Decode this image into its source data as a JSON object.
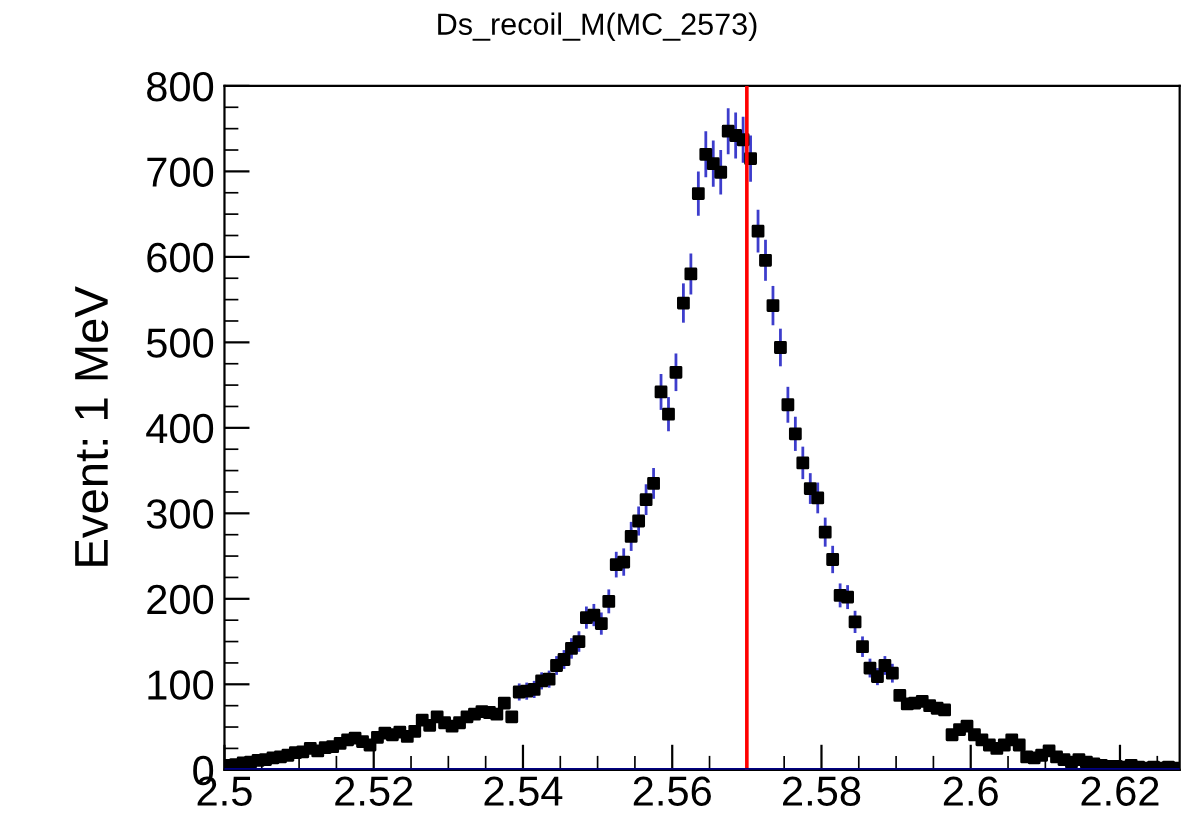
{
  "chart_data": {
    "type": "scatter",
    "title": "Ds_recoil_M(MC_2573)",
    "ylabel": "Event: 1 MeV",
    "xlim": [
      2.5,
      2.628
    ],
    "xticks": [
      2.5,
      2.52,
      2.54,
      2.56,
      2.58,
      2.6,
      2.62
    ],
    "ylim": [
      0,
      800
    ],
    "yticks": [
      0,
      100,
      200,
      300,
      400,
      500,
      600,
      700,
      800
    ],
    "grid": false,
    "legend": false,
    "marker": "square",
    "ref_lines": [
      {
        "axis": "x",
        "value": 2.57,
        "color": "#ff0000"
      },
      {
        "axis": "y",
        "value": 0,
        "color": "#000080"
      }
    ],
    "series": [
      {
        "color": "#000000",
        "x": [
          2.5005,
          2.5015,
          2.5025,
          2.5035,
          2.5045,
          2.5055,
          2.5065,
          2.5075,
          2.5085,
          2.5095,
          2.5105,
          2.5115,
          2.5125,
          2.5135,
          2.5145,
          2.5155,
          2.5165,
          2.5175,
          2.5185,
          2.5195,
          2.5205,
          2.5215,
          2.5225,
          2.5235,
          2.5245,
          2.5255,
          2.5265,
          2.5275,
          2.5285,
          2.5295,
          2.5305,
          2.5315,
          2.5325,
          2.5335,
          2.5345,
          2.5355,
          2.5365,
          2.5375,
          2.5385,
          2.5395,
          2.5405,
          2.5415,
          2.5425,
          2.5435,
          2.5445,
          2.5455,
          2.5465,
          2.5475,
          2.5485,
          2.5495,
          2.5505,
          2.5515,
          2.5525,
          2.5535,
          2.5545,
          2.5555,
          2.5565,
          2.5575,
          2.5585,
          2.5595,
          2.5605,
          2.5615,
          2.5625,
          2.5635,
          2.5645,
          2.5655,
          2.5665,
          2.5675,
          2.5685,
          2.5695,
          2.5705,
          2.5715,
          2.5725,
          2.5735,
          2.5745,
          2.5755,
          2.5765,
          2.5775,
          2.5785,
          2.5795,
          2.5805,
          2.5815,
          2.5825,
          2.5835,
          2.5845,
          2.5855,
          2.5865,
          2.5875,
          2.5885,
          2.5895,
          2.5905,
          2.5915,
          2.5925,
          2.5935,
          2.5945,
          2.5955,
          2.5965,
          2.5975,
          2.5985,
          2.5995,
          2.6005,
          2.6015,
          2.6025,
          2.6035,
          2.6045,
          2.6055,
          2.6065,
          2.6075,
          2.6085,
          2.6095,
          2.6105,
          2.6115,
          2.6125,
          2.6135,
          2.6145,
          2.6155,
          2.6165,
          2.6175,
          2.6185,
          2.6195,
          2.6205,
          2.6215,
          2.6225,
          2.6235,
          2.6245,
          2.6255,
          2.6265,
          2.6275
        ],
        "values": [
          5,
          6,
          8,
          9,
          11,
          12,
          14,
          15,
          17,
          20,
          21,
          25,
          22,
          26,
          27,
          31,
          35,
          37,
          33,
          29,
          38,
          43,
          41,
          44,
          39,
          45,
          58,
          52,
          62,
          55,
          51,
          55,
          62,
          65,
          68,
          67,
          65,
          78,
          62,
          91,
          92,
          94,
          104,
          106,
          122,
          129,
          142,
          150,
          178,
          181,
          171,
          197,
          240,
          243,
          273,
          291,
          316,
          335,
          442,
          416,
          465,
          546,
          580,
          674,
          720,
          709,
          699,
          747,
          742,
          737,
          715,
          630,
          596,
          543,
          494,
          427,
          393,
          359,
          329,
          318,
          278,
          246,
          204,
          202,
          173,
          144,
          119,
          109,
          122,
          113,
          87,
          77,
          78,
          80,
          75,
          72,
          70,
          41,
          47,
          51,
          41,
          35,
          29,
          25,
          29,
          35,
          29,
          15,
          14,
          17,
          22,
          15,
          12,
          9,
          12,
          9,
          7,
          5,
          4,
          4,
          3,
          5,
          3,
          2,
          3,
          2,
          3,
          2
        ],
        "errors": [
          null,
          null,
          null,
          null,
          null,
          null,
          null,
          null,
          null,
          null,
          null,
          null,
          null,
          null,
          null,
          null,
          null,
          null,
          null,
          null,
          null,
          null,
          null,
          null,
          null,
          null,
          null,
          null,
          null,
          null,
          null,
          null,
          null,
          null,
          null,
          null,
          null,
          null,
          null,
          10,
          10,
          10,
          10,
          10,
          11,
          11,
          12,
          12,
          13,
          13,
          13,
          14,
          15,
          16,
          17,
          17,
          18,
          18,
          21,
          20,
          22,
          23,
          24,
          26,
          27,
          27,
          26,
          27,
          27,
          27,
          27,
          25,
          24,
          23,
          22,
          21,
          20,
          19,
          18,
          18,
          17,
          16,
          14,
          14,
          13,
          12,
          11,
          10,
          11,
          11,
          null,
          null,
          null,
          null,
          null,
          null,
          null,
          null,
          null,
          null,
          null,
          null,
          null,
          null,
          null,
          null,
          null,
          null,
          null,
          null,
          null,
          null,
          null,
          null,
          null,
          null,
          null,
          null,
          null,
          null,
          null,
          null,
          null,
          null,
          null,
          null,
          null,
          null
        ]
      }
    ]
  }
}
